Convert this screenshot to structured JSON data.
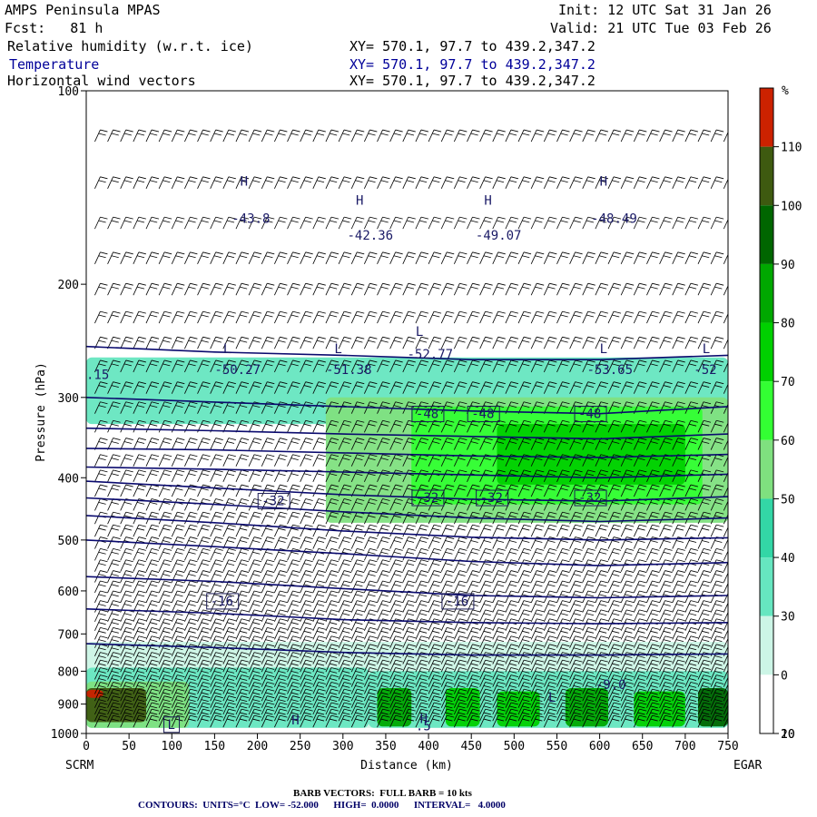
{
  "header": {
    "model": "AMPS Peninsula MPAS",
    "forecast": "Fcst:   81 h",
    "init": "Init: 12 UTC Sat 31 Jan 26",
    "valid": "Valid: 21 UTC Tue 03 Feb 26",
    "fields": [
      {
        "name": "Relative humidity (w.r.t. ice)",
        "xy": "XY= 570.1, 97.7 to 439.2,347.2"
      },
      {
        "name": "Temperature",
        "xy": "XY= 570.1, 97.7 to 439.2,347.2"
      },
      {
        "name": "Horizontal wind vectors",
        "xy": "XY= 570.1, 97.7 to 439.2,347.2"
      }
    ]
  },
  "footer": {
    "barbs": "BARB VECTORS:  FULL BARB = 10 kts",
    "contours": "CONTOURS:  UNITS=°C  LOW= -52.000      HIGH=  0.0000      INTERVAL=   4.0000"
  },
  "chart_data": {
    "type": "heatmap",
    "xlabel": "Distance (km)",
    "ylabel": "Pressure (hPa)",
    "xlim": [
      0,
      750
    ],
    "ylim": [
      1000,
      100
    ],
    "y_scale": "log",
    "x_ticks": [
      0,
      50,
      100,
      150,
      200,
      250,
      300,
      350,
      400,
      450,
      500,
      550,
      600,
      650,
      700,
      750
    ],
    "y_ticks": [
      100,
      200,
      300,
      400,
      500,
      600,
      700,
      800,
      900,
      1000
    ],
    "endpoints": {
      "left": "SCRM",
      "right": "EGAR"
    },
    "colorbar": {
      "label": "%",
      "ticks": [
        0,
        10,
        20,
        30,
        40,
        50,
        60,
        70,
        80,
        90,
        100,
        110
      ],
      "levels": [
        {
          "from": 0,
          "to": 30,
          "color": "#ffffff"
        },
        {
          "from": 30,
          "to": 40,
          "color": "#ccf5e6"
        },
        {
          "from": 40,
          "to": 50,
          "color": "#66e6c0"
        },
        {
          "from": 50,
          "to": 60,
          "color": "#33d6a6"
        },
        {
          "from": 60,
          "to": 70,
          "color": "#7fe07f"
        },
        {
          "from": 70,
          "to": 80,
          "color": "#33ff33"
        },
        {
          "from": 80,
          "to": 90,
          "color": "#00d000"
        },
        {
          "from": 90,
          "to": 100,
          "color": "#00a800"
        },
        {
          "from": 100,
          "to": 110,
          "color": "#006600"
        },
        {
          "from": 110,
          "to": 120,
          "color": "#3e5a10"
        },
        {
          "from": 120,
          "to": 130,
          "color": "#cc2200"
        }
      ]
    },
    "rh_bands": [
      {
        "p_top": 260,
        "p_bottom": 330,
        "x_from": 0,
        "x_to": 750,
        "level": 40
      },
      {
        "p_top": 300,
        "p_bottom": 470,
        "x_from": 280,
        "x_to": 750,
        "level": 60
      },
      {
        "p_top": 310,
        "p_bottom": 440,
        "x_from": 380,
        "x_to": 720,
        "level": 70
      },
      {
        "p_top": 330,
        "p_bottom": 410,
        "x_from": 480,
        "x_to": 700,
        "level": 80
      },
      {
        "p_top": 720,
        "p_bottom": 980,
        "x_from": 0,
        "x_to": 750,
        "level": 30
      },
      {
        "p_top": 790,
        "p_bottom": 980,
        "x_from": 0,
        "x_to": 330,
        "level": 40
      },
      {
        "p_top": 830,
        "p_bottom": 980,
        "x_from": 0,
        "x_to": 120,
        "level": 60
      },
      {
        "p_top": 850,
        "p_bottom": 960,
        "x_from": 0,
        "x_to": 70,
        "level": 110
      },
      {
        "p_top": 855,
        "p_bottom": 880,
        "x_from": 0,
        "x_to": 20,
        "level": 120
      },
      {
        "p_top": 800,
        "p_bottom": 980,
        "x_from": 330,
        "x_to": 750,
        "level": 40
      },
      {
        "p_top": 850,
        "p_bottom": 975,
        "x_from": 340,
        "x_to": 380,
        "level": 90
      },
      {
        "p_top": 850,
        "p_bottom": 975,
        "x_from": 420,
        "x_to": 460,
        "level": 80
      },
      {
        "p_top": 860,
        "p_bottom": 975,
        "x_from": 480,
        "x_to": 530,
        "level": 80
      },
      {
        "p_top": 850,
        "p_bottom": 975,
        "x_from": 560,
        "x_to": 610,
        "level": 90
      },
      {
        "p_top": 860,
        "p_bottom": 975,
        "x_from": 640,
        "x_to": 700,
        "level": 80
      },
      {
        "p_top": 850,
        "p_bottom": 975,
        "x_from": 715,
        "x_to": 750,
        "level": 100
      }
    ],
    "series": [
      {
        "name": "-52",
        "values": [
          [
            0,
            250
          ],
          [
            150,
            255
          ],
          [
            300,
            258
          ],
          [
            450,
            262
          ],
          [
            600,
            262
          ],
          [
            750,
            258
          ]
        ]
      },
      {
        "name": "-48",
        "values": [
          [
            0,
            300
          ],
          [
            150,
            305
          ],
          [
            300,
            310
          ],
          [
            450,
            315
          ],
          [
            600,
            318
          ],
          [
            750,
            310
          ]
        ]
      },
      {
        "name": "-44",
        "values": [
          [
            0,
            335
          ],
          [
            150,
            338
          ],
          [
            300,
            342
          ],
          [
            450,
            345
          ],
          [
            600,
            348
          ],
          [
            750,
            342
          ]
        ]
      },
      {
        "name": "-40",
        "values": [
          [
            0,
            360
          ],
          [
            150,
            362
          ],
          [
            300,
            366
          ],
          [
            450,
            370
          ],
          [
            600,
            372
          ],
          [
            750,
            368
          ]
        ]
      },
      {
        "name": "-36",
        "values": [
          [
            0,
            385
          ],
          [
            150,
            388
          ],
          [
            300,
            392
          ],
          [
            450,
            396
          ],
          [
            600,
            400
          ],
          [
            750,
            395
          ]
        ]
      },
      {
        "name": "-32",
        "values": [
          [
            0,
            405
          ],
          [
            150,
            415
          ],
          [
            300,
            425
          ],
          [
            450,
            432
          ],
          [
            600,
            435
          ],
          [
            750,
            428
          ]
        ]
      },
      {
        "name": "-28",
        "values": [
          [
            0,
            430
          ],
          [
            150,
            440
          ],
          [
            300,
            452
          ],
          [
            450,
            462
          ],
          [
            600,
            468
          ],
          [
            750,
            462
          ]
        ]
      },
      {
        "name": "-24",
        "values": [
          [
            0,
            458
          ],
          [
            150,
            470
          ],
          [
            300,
            484
          ],
          [
            450,
            495
          ],
          [
            600,
            500
          ],
          [
            750,
            496
          ]
        ]
      },
      {
        "name": "-20",
        "values": [
          [
            0,
            500
          ],
          [
            150,
            512
          ],
          [
            300,
            525
          ],
          [
            450,
            540
          ],
          [
            600,
            548
          ],
          [
            750,
            542
          ]
        ]
      },
      {
        "name": "-16",
        "values": [
          [
            0,
            570
          ],
          [
            150,
            580
          ],
          [
            300,
            595
          ],
          [
            450,
            610
          ],
          [
            600,
            615
          ],
          [
            750,
            610
          ]
        ]
      },
      {
        "name": "-12",
        "values": [
          [
            0,
            640
          ],
          [
            150,
            650
          ],
          [
            300,
            665
          ],
          [
            450,
            672
          ],
          [
            600,
            675
          ],
          [
            750,
            672
          ]
        ]
      },
      {
        "name": "-8",
        "values": [
          [
            0,
            725
          ],
          [
            150,
            735
          ],
          [
            300,
            748
          ],
          [
            450,
            755
          ],
          [
            600,
            755
          ],
          [
            750,
            752
          ]
        ]
      }
    ],
    "labels": [
      {
        "text": "-48",
        "x": 385,
        "p": 322,
        "boxed": true
      },
      {
        "text": "-48",
        "x": 450,
        "p": 322,
        "boxed": true
      },
      {
        "text": "-48",
        "x": 575,
        "p": 322,
        "boxed": true
      },
      {
        "text": "-32",
        "x": 205,
        "p": 440,
        "boxed": true
      },
      {
        "text": "-32",
        "x": 385,
        "p": 435,
        "boxed": true
      },
      {
        "text": "-32",
        "x": 460,
        "p": 435,
        "boxed": true
      },
      {
        "text": "-32",
        "x": 575,
        "p": 435,
        "boxed": true
      },
      {
        "text": "-16",
        "x": 145,
        "p": 630,
        "boxed": true
      },
      {
        "text": "-16",
        "x": 420,
        "p": 630,
        "boxed": true
      },
      {
        "text": "H",
        "x": 180,
        "p": 140,
        "boxed": false
      },
      {
        "text": "-43.8",
        "x": 170,
        "p": 160,
        "boxed": false
      },
      {
        "text": "H",
        "x": 315,
        "p": 150,
        "boxed": false
      },
      {
        "text": "-42.36",
        "x": 305,
        "p": 170,
        "boxed": false
      },
      {
        "text": "H",
        "x": 465,
        "p": 150,
        "boxed": false
      },
      {
        "text": "-49.07",
        "x": 455,
        "p": 170,
        "boxed": false
      },
      {
        "text": "H",
        "x": 600,
        "p": 140,
        "boxed": false
      },
      {
        "text": "-48.49",
        "x": 590,
        "p": 160,
        "boxed": false
      },
      {
        "text": "L",
        "x": 160,
        "p": 255,
        "boxed": false
      },
      {
        "text": "-50.27",
        "x": 150,
        "p": 275,
        "boxed": false
      },
      {
        "text": "L",
        "x": 290,
        "p": 255,
        "boxed": false
      },
      {
        "text": "-51.38",
        "x": 280,
        "p": 275,
        "boxed": false
      },
      {
        "text": "L",
        "x": 385,
        "p": 240,
        "boxed": false
      },
      {
        "text": "-52.77",
        "x": 375,
        "p": 260,
        "boxed": false
      },
      {
        "text": "L",
        "x": 600,
        "p": 255,
        "boxed": false
      },
      {
        "text": "-53.65",
        "x": 585,
        "p": 275,
        "boxed": false
      },
      {
        "text": "L",
        "x": 720,
        "p": 255,
        "boxed": false
      },
      {
        "text": "-52",
        "x": 710,
        "p": 275,
        "boxed": false
      },
      {
        "text": ".15",
        "x": 0,
        "p": 280,
        "boxed": false
      },
      {
        "text": "-9.0",
        "x": 595,
        "p": 850,
        "boxed": false
      },
      {
        "text": "L",
        "x": 540,
        "p": 890,
        "boxed": false
      },
      {
        "text": "H",
        "x": 390,
        "p": 960,
        "boxed": false
      },
      {
        "text": ".5",
        "x": 385,
        "p": 985,
        "boxed": false
      },
      {
        "text": "H",
        "x": 240,
        "p": 965,
        "boxed": false
      },
      {
        "text": "L",
        "x": 95,
        "p": 980,
        "boxed": true
      }
    ],
    "wind": {
      "full_barb_kts": 10,
      "direction": "northwesterly",
      "typical_kts": 25
    }
  }
}
